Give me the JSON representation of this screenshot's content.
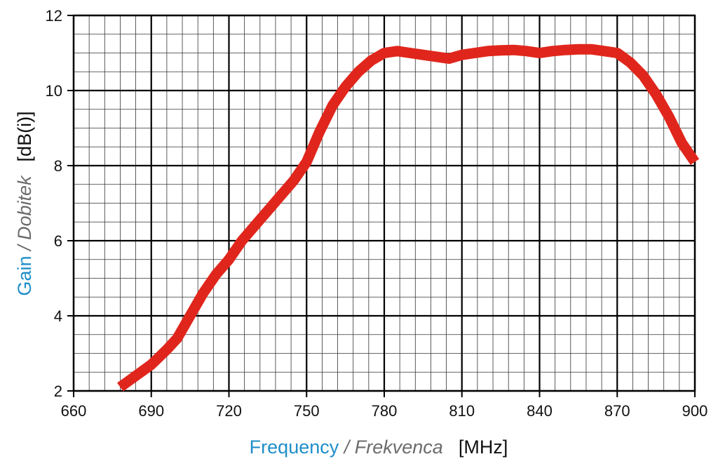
{
  "chart_data": {
    "type": "line",
    "xlabel": {
      "primary": "Frequency",
      "separator": " / ",
      "secondary": "Frekvenca",
      "unit": "[MHz]"
    },
    "ylabel": {
      "primary": "Gain",
      "separator": " / ",
      "secondary": "Dobitek",
      "unit": "[dB(i)]"
    },
    "xlim": [
      660,
      900
    ],
    "ylim": [
      2,
      12
    ],
    "xticks": [
      660,
      690,
      720,
      750,
      780,
      810,
      840,
      870,
      900
    ],
    "yticks": [
      2,
      4,
      6,
      8,
      10,
      12
    ],
    "grid": true,
    "series": [
      {
        "color": "#e0261c",
        "x": [
          678,
          684,
          690,
          696,
          700,
          705,
          710,
          715,
          720,
          725,
          730,
          735,
          740,
          745,
          750,
          755,
          760,
          765,
          770,
          775,
          780,
          785,
          790,
          795,
          800,
          805,
          810,
          815,
          820,
          825,
          830,
          835,
          840,
          845,
          850,
          855,
          860,
          865,
          870,
          875,
          880,
          885,
          890,
          895,
          900
        ],
        "y": [
          2.1,
          2.4,
          2.7,
          3.1,
          3.4,
          4.0,
          4.6,
          5.1,
          5.5,
          6.0,
          6.4,
          6.8,
          7.2,
          7.6,
          8.1,
          8.9,
          9.6,
          10.1,
          10.5,
          10.8,
          11.0,
          11.05,
          11.0,
          10.95,
          10.9,
          10.85,
          10.95,
          11.0,
          11.05,
          11.07,
          11.08,
          11.05,
          11.0,
          11.05,
          11.08,
          11.1,
          11.1,
          11.05,
          11.0,
          10.75,
          10.4,
          9.9,
          9.3,
          8.6,
          8.1
        ]
      }
    ]
  }
}
